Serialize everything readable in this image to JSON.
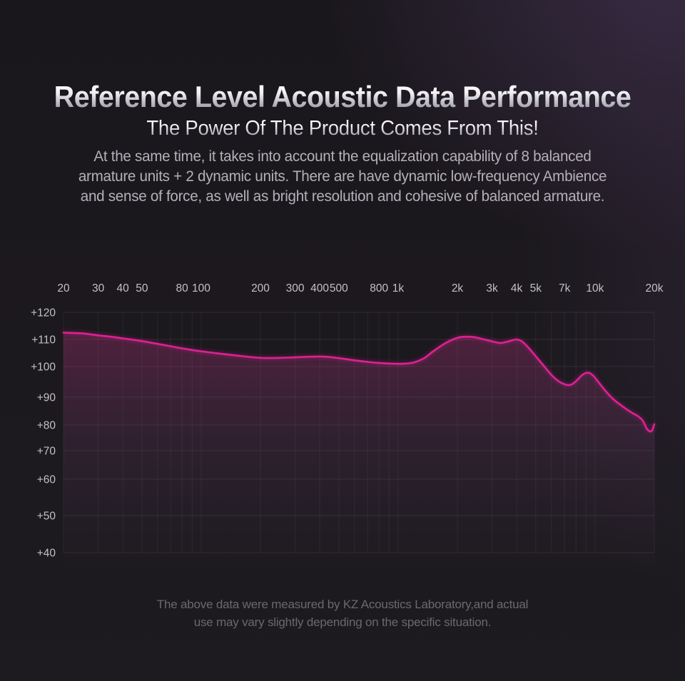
{
  "header": {
    "title": "Reference Level Acoustic Data Performance",
    "subtitle": "The Power Of The Product Comes From This!"
  },
  "body_text": {
    "lines": [
      "At the same time, it takes into account the equalization capability of 8 balanced",
      "armature units + 2 dynamic units. There are have dynamic low-frequency Ambience",
      "and sense of force, as well as bright resolution and cohesive of balanced armature."
    ]
  },
  "footer": {
    "lines": [
      "The above data were measured by KZ Acoustics Laboratory,and actual",
      "use may vary slightly depending on the specific situation."
    ]
  },
  "colors": {
    "curve": "#df2093",
    "curve_glow": "rgba(224,32,147,0.55)",
    "fill_top": "rgba(199,52,134,0.30)",
    "fill_mid": "rgba(140,75,140,0.12)",
    "grid_horizontal": "rgba(255,255,255,0.085)",
    "grid_vertical": "rgba(255,255,255,0.06)",
    "axis_label": "#c3c0c6"
  },
  "chart_data": {
    "type": "line",
    "title": "",
    "xlabel": "",
    "ylabel": "",
    "x_scale": "log",
    "xlim": [
      20,
      20000
    ],
    "ylim": [
      40,
      120
    ],
    "grid": true,
    "x_tick_labels": [
      "20",
      "30",
      "40",
      "50",
      "80",
      "100",
      "200",
      "300",
      "400",
      "500",
      "800",
      "1k",
      "2k",
      "3k",
      "4k",
      "5k",
      "7k",
      "10k",
      "20k"
    ],
    "x_tick_values": [
      20,
      30,
      40,
      50,
      80,
      100,
      200,
      300,
      400,
      500,
      800,
      1000,
      2000,
      3000,
      4000,
      5000,
      7000,
      10000,
      20000
    ],
    "x_grid_values": [
      20,
      30,
      40,
      50,
      60,
      70,
      80,
      90,
      100,
      200,
      300,
      400,
      500,
      600,
      700,
      800,
      900,
      1000,
      2000,
      3000,
      4000,
      5000,
      6000,
      7000,
      8000,
      9000,
      10000,
      20000
    ],
    "y_tick_labels": [
      "+120",
      "+110",
      "+100",
      "+90",
      "+80",
      "+70",
      "+60",
      "+50",
      "+40"
    ],
    "y_tick_values": [
      120,
      110,
      100,
      90,
      80,
      70,
      60,
      50,
      40
    ],
    "series": [
      {
        "name": "frequency-response-spl",
        "points": [
          [
            20,
            112.5
          ],
          [
            25,
            112.2
          ],
          [
            30,
            111.5
          ],
          [
            35,
            111.0
          ],
          [
            40,
            110.4
          ],
          [
            45,
            109.9
          ],
          [
            50,
            109.4
          ],
          [
            60,
            108.4
          ],
          [
            70,
            107.5
          ],
          [
            80,
            106.7
          ],
          [
            90,
            106.1
          ],
          [
            100,
            105.6
          ],
          [
            120,
            104.9
          ],
          [
            150,
            104.1
          ],
          [
            200,
            103.2
          ],
          [
            250,
            103.2
          ],
          [
            300,
            103.4
          ],
          [
            350,
            103.6
          ],
          [
            400,
            103.7
          ],
          [
            450,
            103.5
          ],
          [
            500,
            103.1
          ],
          [
            600,
            102.3
          ],
          [
            700,
            101.7
          ],
          [
            800,
            101.3
          ],
          [
            900,
            101.1
          ],
          [
            1000,
            101.0
          ],
          [
            1100,
            101.1
          ],
          [
            1200,
            101.5
          ],
          [
            1350,
            103.0
          ],
          [
            1500,
            105.5
          ],
          [
            1700,
            108.2
          ],
          [
            1900,
            110.0
          ],
          [
            2100,
            110.9
          ],
          [
            2400,
            110.9
          ],
          [
            2700,
            110.1
          ],
          [
            3000,
            109.3
          ],
          [
            3300,
            108.7
          ],
          [
            3600,
            109.2
          ],
          [
            4000,
            110.0
          ],
          [
            4300,
            109.0
          ],
          [
            4600,
            106.9
          ],
          [
            5000,
            103.8
          ],
          [
            5500,
            100.2
          ],
          [
            6000,
            97.3
          ],
          [
            6500,
            95.3
          ],
          [
            7000,
            94.2
          ],
          [
            7500,
            94.0
          ],
          [
            8000,
            95.2
          ],
          [
            8600,
            97.2
          ],
          [
            9200,
            98.0
          ],
          [
            9800,
            97.0
          ],
          [
            10500,
            94.6
          ],
          [
            11500,
            91.5
          ],
          [
            12500,
            89.0
          ],
          [
            13500,
            87.2
          ],
          [
            14500,
            85.6
          ],
          [
            15500,
            84.3
          ],
          [
            16500,
            83.2
          ],
          [
            17500,
            81.5
          ],
          [
            18300,
            78.6
          ],
          [
            19000,
            77.5
          ],
          [
            19500,
            78.0
          ],
          [
            20000,
            80.3
          ]
        ]
      }
    ]
  }
}
